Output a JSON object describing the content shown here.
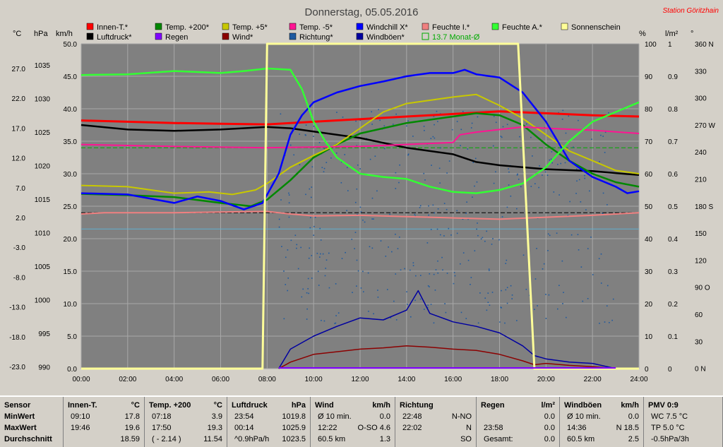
{
  "title": "Donnerstag, 05.05.2016",
  "station": "Station Göritzhain",
  "legend": [
    {
      "label": "Innen-T.*",
      "color": "#ff0000"
    },
    {
      "label": "Temp. +200*",
      "color": "#008800"
    },
    {
      "label": "Temp. +5*",
      "color": "#c8c800"
    },
    {
      "label": "Temp. -5*",
      "color": "#ff1493"
    },
    {
      "label": "Windchill X*",
      "color": "#0000ff"
    },
    {
      "label": "Feuchte I.*",
      "color": "#f08080"
    },
    {
      "label": "Feuchte A.*",
      "color": "#33ff33"
    },
    {
      "label": "Sonnenschein",
      "color": "#ffff99"
    },
    {
      "label": "Luftdruck*",
      "color": "#000000"
    },
    {
      "label": "Regen",
      "color": "#8000ff"
    },
    {
      "label": "Wind*",
      "color": "#8b0000"
    },
    {
      "label": "Richtung*",
      "color": "#1e5aa0"
    },
    {
      "label": "Windböen*",
      "color": "#0000a0"
    },
    {
      "label": "13.7 Monat-Ø",
      "color": "#00aa00",
      "outline": true
    }
  ],
  "axis_units": {
    "celsius": "°C",
    "hpa": "hPa",
    "kmh": "km/h",
    "percent": "%",
    "rain": "l/m²",
    "deg": "°"
  },
  "chart_data": {
    "type": "line",
    "x_ticks": [
      "00:00",
      "02:00",
      "04:00",
      "06:00",
      "08:00",
      "10:00",
      "12:00",
      "14:00",
      "16:00",
      "18:00",
      "20:00",
      "22:00",
      "24:00"
    ],
    "y_ticks_celsius": [
      "27.0",
      "22.0",
      "17.0",
      "12.0",
      "7.0",
      "2.0",
      "-3.0",
      "-8.0",
      "-13.0",
      "-18.0",
      "-23.0"
    ],
    "y_ticks_hpa": [
      "1035",
      "1030",
      "1025",
      "1020",
      "1015",
      "1010",
      "1005",
      "1000",
      "995",
      "990"
    ],
    "y_ticks_kmh": [
      "50.0",
      "45.0",
      "40.0",
      "35.0",
      "30.0",
      "25.0",
      "20.0",
      "15.0",
      "10.0",
      "5.0",
      "0.0"
    ],
    "y_ticks_percent": [
      "100",
      "90",
      "80",
      "70",
      "60",
      "50",
      "40",
      "30",
      "20",
      "10",
      "0"
    ],
    "y_ticks_rain": [
      "1",
      "0.9",
      "0.8",
      "0.7",
      "0.6",
      "0.5",
      "0.4",
      "0.3",
      "0.2",
      "0.1",
      "0"
    ],
    "y_ticks_dir": [
      "360 N",
      "330",
      "300",
      "270 W",
      "240",
      "210",
      "180 S",
      "150",
      "120",
      "90 O",
      "60",
      "30",
      "0 N"
    ],
    "kmh_range": [
      0,
      50
    ],
    "series": [
      {
        "name": "Innen-T.*",
        "color": "#ff0000",
        "pts": [
          [
            0,
            38.2
          ],
          [
            2,
            38.0
          ],
          [
            4,
            37.8
          ],
          [
            6,
            37.7
          ],
          [
            8,
            37.6
          ],
          [
            10,
            38.0
          ],
          [
            12,
            38.4
          ],
          [
            14,
            38.8
          ],
          [
            16,
            39.2
          ],
          [
            18,
            39.6
          ],
          [
            20,
            39.3
          ],
          [
            22,
            39.0
          ],
          [
            24,
            38.8
          ]
        ]
      },
      {
        "name": "Luftdruck*",
        "color": "#000000",
        "pts": [
          [
            0,
            37.5
          ],
          [
            2,
            36.8
          ],
          [
            4,
            36.6
          ],
          [
            6,
            36.8
          ],
          [
            8,
            37.2
          ],
          [
            9,
            37.0
          ],
          [
            10,
            36.5
          ],
          [
            12,
            35.5
          ],
          [
            14,
            34.0
          ],
          [
            16,
            33.0
          ],
          [
            17,
            31.8
          ],
          [
            18,
            31.3
          ],
          [
            20,
            30.7
          ],
          [
            22,
            30.4
          ],
          [
            23,
            30.1
          ],
          [
            24,
            29.8
          ]
        ]
      },
      {
        "name": "Temp. +200*",
        "color": "#008800",
        "pts": [
          [
            0,
            26.9
          ],
          [
            2,
            26.7
          ],
          [
            4,
            26.4
          ],
          [
            6,
            25.5
          ],
          [
            7.3,
            25.0
          ],
          [
            8,
            26.0
          ],
          [
            9,
            29.0
          ],
          [
            10,
            32.5
          ],
          [
            11,
            34.5
          ],
          [
            12,
            36.2
          ],
          [
            14,
            37.8
          ],
          [
            16,
            38.8
          ],
          [
            17,
            39.3
          ],
          [
            18,
            39.0
          ],
          [
            19,
            37.5
          ],
          [
            20,
            34.5
          ],
          [
            21,
            32.0
          ],
          [
            22,
            30.0
          ],
          [
            23,
            28.7
          ],
          [
            24,
            28.0
          ]
        ]
      },
      {
        "name": "Temp. +5*",
        "color": "#c8c800",
        "pts": [
          [
            0,
            28.2
          ],
          [
            2,
            28.0
          ],
          [
            4,
            27.0
          ],
          [
            5.5,
            27.2
          ],
          [
            6.5,
            26.8
          ],
          [
            7.5,
            27.5
          ],
          [
            8,
            28.5
          ],
          [
            9,
            31.0
          ],
          [
            10,
            32.8
          ],
          [
            11,
            34.5
          ],
          [
            12,
            37.0
          ],
          [
            13,
            39.5
          ],
          [
            14,
            40.8
          ],
          [
            16,
            41.8
          ],
          [
            17,
            42.2
          ],
          [
            18,
            40.5
          ],
          [
            19,
            38.5
          ],
          [
            20,
            36.0
          ],
          [
            21,
            33.5
          ],
          [
            22,
            32.0
          ],
          [
            23,
            30.5
          ],
          [
            24,
            30.0
          ]
        ]
      },
      {
        "name": "Temp. -5*",
        "color": "#ff1493",
        "pts": [
          [
            0,
            34.5
          ],
          [
            4,
            34.2
          ],
          [
            8,
            34.0
          ],
          [
            12,
            34.2
          ],
          [
            16,
            34.8
          ],
          [
            16.3,
            36.0
          ],
          [
            17,
            36.4
          ],
          [
            19,
            37.2
          ],
          [
            20,
            37.0
          ],
          [
            22,
            36.7
          ],
          [
            24,
            36.2
          ]
        ]
      },
      {
        "name": "Windchill X*",
        "color": "#0000ff",
        "pts": [
          [
            0,
            27.0
          ],
          [
            2,
            26.8
          ],
          [
            4,
            25.5
          ],
          [
            5,
            26.5
          ],
          [
            6,
            25.8
          ],
          [
            7,
            24.5
          ],
          [
            7.8,
            25.5
          ],
          [
            8.5,
            30.0
          ],
          [
            9,
            36.0
          ],
          [
            9.5,
            39.0
          ],
          [
            10,
            41.0
          ],
          [
            11,
            42.5
          ],
          [
            12,
            43.5
          ],
          [
            13,
            44.2
          ],
          [
            14,
            45.0
          ],
          [
            15,
            45.5
          ],
          [
            16,
            45.5
          ],
          [
            16.5,
            46.0
          ],
          [
            17,
            45.3
          ],
          [
            18,
            44.8
          ],
          [
            19,
            42.5
          ],
          [
            20,
            38.0
          ],
          [
            20.5,
            35.0
          ],
          [
            21,
            32.0
          ],
          [
            22,
            29.5
          ],
          [
            23,
            28.0
          ],
          [
            23.5,
            27.0
          ],
          [
            24,
            27.3
          ]
        ]
      },
      {
        "name": "Feuchte I.*",
        "color": "#f08080",
        "pts": [
          [
            0,
            23.8
          ],
          [
            1,
            24.0
          ],
          [
            2,
            24.0
          ],
          [
            4,
            24.0
          ],
          [
            6,
            24.1
          ],
          [
            8,
            24.2
          ],
          [
            9,
            23.8
          ],
          [
            10,
            23.5
          ],
          [
            12,
            23.6
          ],
          [
            14,
            23.4
          ],
          [
            16,
            23.2
          ],
          [
            18,
            23.0
          ],
          [
            20,
            23.3
          ],
          [
            22,
            23.6
          ],
          [
            24,
            24.0
          ]
        ]
      },
      {
        "name": "Feuchte A.*",
        "color": "#33ff33",
        "pts": [
          [
            0,
            45.2
          ],
          [
            2,
            45.3
          ],
          [
            4,
            45.8
          ],
          [
            6,
            45.5
          ],
          [
            7,
            45.8
          ],
          [
            8,
            46.2
          ],
          [
            9,
            46.0
          ],
          [
            9.5,
            43.0
          ],
          [
            10,
            38.0
          ],
          [
            10.5,
            35.0
          ],
          [
            11,
            32.5
          ],
          [
            12,
            30.0
          ],
          [
            13,
            29.5
          ],
          [
            14,
            29.2
          ],
          [
            15,
            28.0
          ],
          [
            16,
            27.2
          ],
          [
            17,
            27.0
          ],
          [
            18,
            27.5
          ],
          [
            19,
            28.5
          ],
          [
            20,
            31.0
          ],
          [
            21,
            35.0
          ],
          [
            22,
            38.0
          ],
          [
            23,
            39.5
          ],
          [
            24,
            41.0
          ]
        ]
      },
      {
        "name": "Wind*",
        "color": "#8b0000",
        "pts": [
          [
            8.5,
            0
          ],
          [
            9,
            1.0
          ],
          [
            10,
            2.2
          ],
          [
            11,
            2.6
          ],
          [
            12,
            3.0
          ],
          [
            13,
            3.2
          ],
          [
            14,
            3.5
          ],
          [
            15,
            3.3
          ],
          [
            16,
            3.0
          ],
          [
            17,
            2.8
          ],
          [
            18,
            2.2
          ],
          [
            19,
            1.2
          ],
          [
            19.5,
            0.6
          ],
          [
            20,
            0.8
          ],
          [
            21,
            0.5
          ],
          [
            22,
            0.3
          ],
          [
            23,
            0
          ]
        ]
      },
      {
        "name": "Windböen*",
        "color": "#0000a0",
        "pts": [
          [
            8.5,
            0
          ],
          [
            9,
            3.0
          ],
          [
            10,
            5.0
          ],
          [
            11,
            6.5
          ],
          [
            12,
            7.8
          ],
          [
            13,
            7.5
          ],
          [
            14,
            9.0
          ],
          [
            14.5,
            12.0
          ],
          [
            15,
            8.5
          ],
          [
            16,
            7.2
          ],
          [
            17,
            6.5
          ],
          [
            18,
            5.5
          ],
          [
            19,
            3.5
          ],
          [
            19.5,
            2.0
          ],
          [
            20,
            1.5
          ],
          [
            21,
            1.0
          ],
          [
            22,
            0.8
          ],
          [
            23,
            0
          ]
        ]
      },
      {
        "name": "Sonnenschein",
        "color": "#ffff99",
        "pts": [
          [
            0,
            0
          ],
          [
            7.8,
            0
          ],
          [
            8.0,
            50
          ],
          [
            18.8,
            50
          ],
          [
            19.5,
            0
          ],
          [
            24,
            0
          ]
        ]
      }
    ],
    "reference_lines": [
      {
        "name": "13.7 Monat-Ø",
        "value": 34.0,
        "color": "#00aa00",
        "dash": true
      },
      {
        "name": "Luftdruck-Ø",
        "value": 24.0,
        "color": "#000000",
        "dash": true
      },
      {
        "name": "Feuchte-Ø",
        "value": 21.5,
        "color": "#5fb0d0",
        "dash": false
      }
    ],
    "direction_scatter": {
      "x_range": [
        8.5,
        23
      ],
      "y_range": [
        7,
        40
      ],
      "count": 420,
      "color": "#1e5aa0"
    }
  },
  "stats": {
    "row_labels": [
      "Sensor",
      "MinWert",
      "MaxWert",
      "Durchschnitt"
    ],
    "blocks": [
      {
        "title": "Innen-T.",
        "unit": "°C",
        "rows": [
          [
            "09:10",
            "17.8"
          ],
          [
            "19:46",
            "19.6"
          ],
          [
            "",
            "18.59"
          ]
        ]
      },
      {
        "title": "Temp. +200",
        "unit": "°C",
        "rows": [
          [
            "07:18",
            "3.9"
          ],
          [
            "17:50",
            "19.3"
          ],
          [
            "( - 2.14 )",
            "11.54"
          ]
        ]
      },
      {
        "title": "Luftdruck",
        "unit": "hPa",
        "rows": [
          [
            "23:54",
            "1019.8"
          ],
          [
            "00:14",
            "1025.9"
          ],
          [
            "^0.9hPa/h",
            "1023.5"
          ]
        ]
      },
      {
        "title": "Wind",
        "unit": "km/h",
        "rows": [
          [
            "Ø 10 min.",
            "0.0"
          ],
          [
            "12:22",
            "O-SO 4.6"
          ],
          [
            "60.5 km",
            "1.3"
          ]
        ]
      },
      {
        "title": "Richtung",
        "unit": "",
        "rows": [
          [
            "22:48",
            "N-NO"
          ],
          [
            "22:02",
            "N"
          ],
          [
            "",
            "SO"
          ]
        ]
      },
      {
        "title": "Regen",
        "unit": "l/m²",
        "rows": [
          [
            "",
            "0.0"
          ],
          [
            "23:58",
            "0.0"
          ],
          [
            "Gesamt:",
            "0.0"
          ]
        ]
      },
      {
        "title": "Windböen",
        "unit": "km/h",
        "rows": [
          [
            "Ø 10 min.",
            "0.0"
          ],
          [
            "14:36",
            "N 18.5"
          ],
          [
            "60.5 km",
            "2.5"
          ]
        ]
      },
      {
        "title": "PMV 0:9",
        "unit": "",
        "rows": [
          [
            "WC 7.5 °C",
            ""
          ],
          [
            "TP 5.0 °C",
            ""
          ],
          [
            "-0.5hPa/3h",
            ""
          ]
        ]
      }
    ]
  }
}
